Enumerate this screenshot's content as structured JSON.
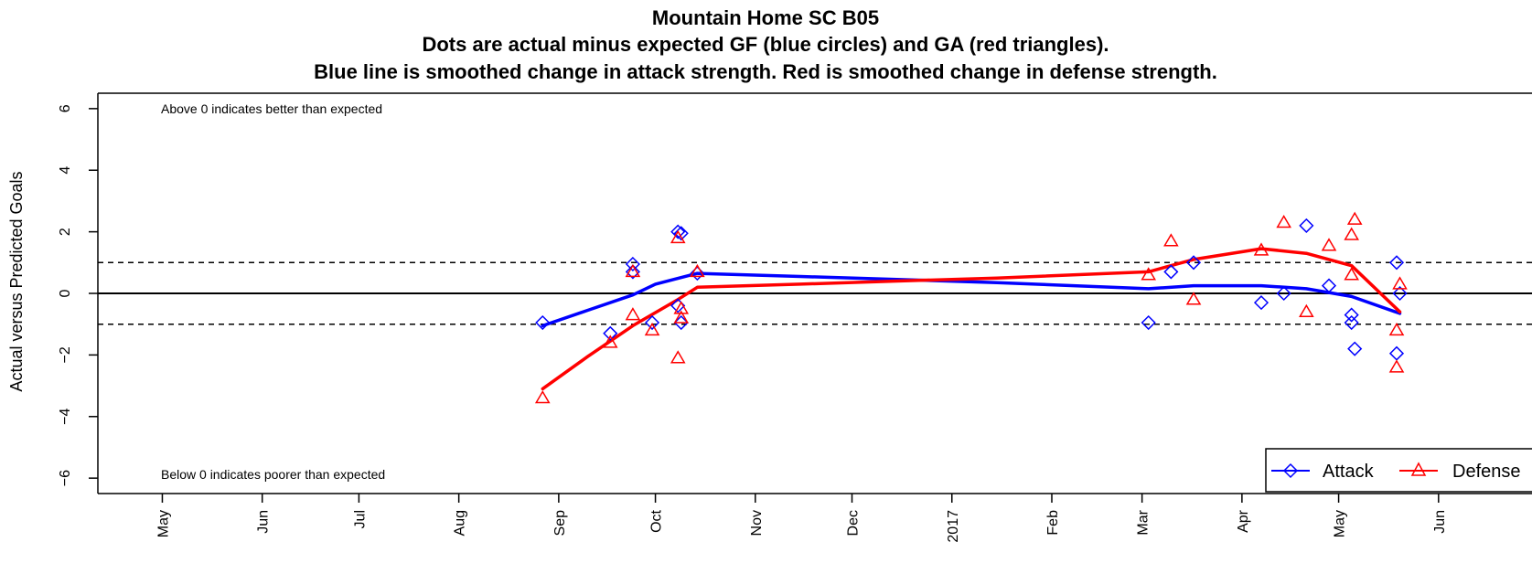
{
  "chart_data": {
    "type": "scatter",
    "title_lines": [
      "Mountain Home SC B05",
      "Dots are actual minus expected GF (blue circles) and GA (red triangles).",
      "Blue line is smoothed change in attack strength. Red is smoothed change in defense strength."
    ],
    "ylabel": "Actual versus Predicted Goals",
    "xlabel": "",
    "ylim": [
      -6.5,
      6.5
    ],
    "xlim": [
      "2016-04-11",
      "2017-06-30"
    ],
    "y_ticks": [
      -6,
      -4,
      -2,
      0,
      2,
      4,
      6
    ],
    "y_tick_labels": [
      "−6",
      "−4",
      "−2",
      "0",
      "2",
      "4",
      "6"
    ],
    "x_ticks": [
      {
        "date": "2016-05-01",
        "label": "May"
      },
      {
        "date": "2016-06-01",
        "label": "Jun"
      },
      {
        "date": "2016-07-01",
        "label": "Jul"
      },
      {
        "date": "2016-08-01",
        "label": "Aug"
      },
      {
        "date": "2016-09-01",
        "label": "Sep"
      },
      {
        "date": "2016-10-01",
        "label": "Oct"
      },
      {
        "date": "2016-11-01",
        "label": "Nov"
      },
      {
        "date": "2016-12-01",
        "label": "Dec"
      },
      {
        "date": "2017-01-01",
        "label": "2017"
      },
      {
        "date": "2017-02-01",
        "label": "Feb"
      },
      {
        "date": "2017-03-01",
        "label": "Mar"
      },
      {
        "date": "2017-04-01",
        "label": "Apr"
      },
      {
        "date": "2017-05-01",
        "label": "May"
      },
      {
        "date": "2017-06-01",
        "label": "Jun"
      }
    ],
    "reference_lines": [
      {
        "y": 0,
        "style": "solid"
      },
      {
        "y": 1,
        "style": "dashed"
      },
      {
        "y": -1,
        "style": "dashed"
      }
    ],
    "annotations": [
      {
        "text": "Above 0 indicates better than expected",
        "position": "top-left"
      },
      {
        "text": "Below 0 indicates poorer than expected",
        "position": "bottom-left"
      }
    ],
    "colors": {
      "attack": "#0000ff",
      "defense": "#ff0000",
      "axis": "#000000"
    },
    "legend": {
      "position": "bottom-right",
      "entries": [
        {
          "label": "Attack",
          "color": "#0000ff",
          "marker": "diamond"
        },
        {
          "label": "Defense",
          "color": "#ff0000",
          "marker": "triangle"
        }
      ]
    },
    "series": [
      {
        "name": "Attack",
        "kind": "points",
        "marker": "diamond",
        "color": "#0000ff",
        "points": [
          {
            "x": "2016-08-27",
            "y": -0.95
          },
          {
            "x": "2016-09-17",
            "y": -1.3
          },
          {
            "x": "2016-09-24",
            "y": 0.95
          },
          {
            "x": "2016-09-24",
            "y": 0.7
          },
          {
            "x": "2016-09-30",
            "y": -0.95
          },
          {
            "x": "2016-10-08",
            "y": 2.0
          },
          {
            "x": "2016-10-09",
            "y": 1.95
          },
          {
            "x": "2016-10-08",
            "y": -0.4
          },
          {
            "x": "2016-10-09",
            "y": -0.95
          },
          {
            "x": "2016-10-14",
            "y": 0.65
          },
          {
            "x": "2017-03-03",
            "y": -0.95
          },
          {
            "x": "2017-03-10",
            "y": 0.7
          },
          {
            "x": "2017-03-17",
            "y": 1.0
          },
          {
            "x": "2017-04-07",
            "y": -0.3
          },
          {
            "x": "2017-04-14",
            "y": 0.0
          },
          {
            "x": "2017-04-21",
            "y": 2.2
          },
          {
            "x": "2017-04-28",
            "y": 0.25
          },
          {
            "x": "2017-05-05",
            "y": -0.7
          },
          {
            "x": "2017-05-05",
            "y": -0.95
          },
          {
            "x": "2017-05-06",
            "y": -1.8
          },
          {
            "x": "2017-05-19",
            "y": 1.0
          },
          {
            "x": "2017-05-19",
            "y": -1.95
          },
          {
            "x": "2017-05-20",
            "y": 0.0
          }
        ]
      },
      {
        "name": "Defense",
        "kind": "points",
        "marker": "triangle",
        "color": "#ff0000",
        "points": [
          {
            "x": "2016-08-27",
            "y": -3.4
          },
          {
            "x": "2016-09-17",
            "y": -1.6
          },
          {
            "x": "2016-09-24",
            "y": 0.7
          },
          {
            "x": "2016-09-24",
            "y": -0.7
          },
          {
            "x": "2016-09-30",
            "y": -1.2
          },
          {
            "x": "2016-10-08",
            "y": 1.8
          },
          {
            "x": "2016-10-08",
            "y": -2.1
          },
          {
            "x": "2016-10-09",
            "y": -0.5
          },
          {
            "x": "2016-10-09",
            "y": -0.8
          },
          {
            "x": "2016-10-14",
            "y": 0.7
          },
          {
            "x": "2017-03-03",
            "y": 0.6
          },
          {
            "x": "2017-03-10",
            "y": 1.7
          },
          {
            "x": "2017-03-17",
            "y": -0.2
          },
          {
            "x": "2017-04-07",
            "y": 1.4
          },
          {
            "x": "2017-04-14",
            "y": 2.3
          },
          {
            "x": "2017-04-21",
            "y": -0.6
          },
          {
            "x": "2017-04-28",
            "y": 1.55
          },
          {
            "x": "2017-05-05",
            "y": 1.9
          },
          {
            "x": "2017-05-05",
            "y": 0.6
          },
          {
            "x": "2017-05-06",
            "y": 2.4
          },
          {
            "x": "2017-05-19",
            "y": -1.2
          },
          {
            "x": "2017-05-19",
            "y": -2.4
          },
          {
            "x": "2017-05-20",
            "y": 0.3
          }
        ]
      },
      {
        "name": "Attack",
        "kind": "smooth",
        "color": "#0000ff",
        "points": [
          {
            "x": "2016-08-27",
            "y": -1.05
          },
          {
            "x": "2016-09-10",
            "y": -0.55
          },
          {
            "x": "2016-09-24",
            "y": -0.05
          },
          {
            "x": "2016-10-01",
            "y": 0.3
          },
          {
            "x": "2016-10-14",
            "y": 0.65
          },
          {
            "x": "2016-11-15",
            "y": 0.55
          },
          {
            "x": "2016-12-15",
            "y": 0.45
          },
          {
            "x": "2017-01-15",
            "y": 0.35
          },
          {
            "x": "2017-03-03",
            "y": 0.15
          },
          {
            "x": "2017-03-17",
            "y": 0.25
          },
          {
            "x": "2017-04-07",
            "y": 0.25
          },
          {
            "x": "2017-04-21",
            "y": 0.15
          },
          {
            "x": "2017-05-05",
            "y": -0.1
          },
          {
            "x": "2017-05-20",
            "y": -0.65
          }
        ]
      },
      {
        "name": "Defense",
        "kind": "smooth",
        "color": "#ff0000",
        "points": [
          {
            "x": "2016-08-27",
            "y": -3.1
          },
          {
            "x": "2016-09-10",
            "y": -2.05
          },
          {
            "x": "2016-09-24",
            "y": -1.05
          },
          {
            "x": "2016-10-08",
            "y": -0.2
          },
          {
            "x": "2016-10-14",
            "y": 0.2
          },
          {
            "x": "2016-11-15",
            "y": 0.3
          },
          {
            "x": "2016-12-15",
            "y": 0.4
          },
          {
            "x": "2017-01-15",
            "y": 0.5
          },
          {
            "x": "2017-03-03",
            "y": 0.7
          },
          {
            "x": "2017-03-17",
            "y": 1.1
          },
          {
            "x": "2017-04-07",
            "y": 1.45
          },
          {
            "x": "2017-04-21",
            "y": 1.3
          },
          {
            "x": "2017-05-05",
            "y": 0.9
          },
          {
            "x": "2017-05-20",
            "y": -0.6
          }
        ]
      }
    ]
  }
}
